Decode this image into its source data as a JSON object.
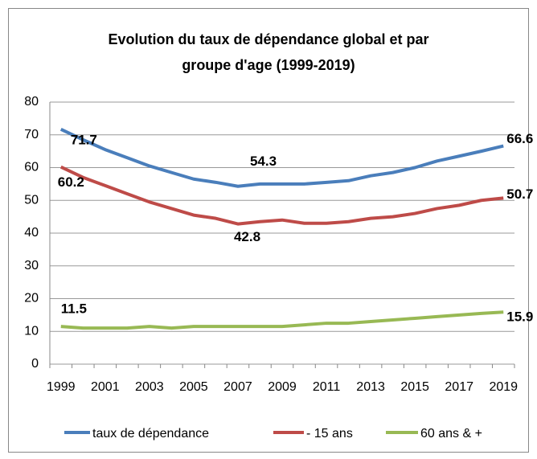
{
  "chart_data": {
    "type": "line",
    "title": [
      "Evolution du taux de dépendance global et par",
      "groupe d'age (1999-2019)"
    ],
    "categories": [
      1999,
      null,
      2001,
      null,
      2003,
      null,
      2005,
      null,
      2007,
      null,
      2009,
      null,
      2011,
      null,
      2013,
      null,
      2015,
      null,
      2017,
      null,
      2019
    ],
    "series": [
      {
        "name": "taux de dépendance",
        "color": "#4a7ebb",
        "values": [
          71.7,
          68.5,
          65.5,
          63,
          60.5,
          58.5,
          56.5,
          55.5,
          54.3,
          55,
          55,
          55,
          55.5,
          56,
          57.5,
          58.5,
          60,
          62,
          63.5,
          65,
          66.6
        ],
        "value_labels": [
          "71.7",
          null,
          null,
          null,
          null,
          null,
          null,
          null,
          "54.3",
          null,
          null,
          null,
          null,
          null,
          null,
          null,
          null,
          null,
          null,
          null,
          "66.6"
        ]
      },
      {
        "name": "- 15 ans",
        "color": "#be4b48",
        "values": [
          60.2,
          57,
          54.5,
          52,
          49.5,
          47.5,
          45.5,
          44.5,
          42.8,
          43.5,
          44,
          43,
          43,
          43.5,
          44.5,
          45,
          46,
          47.5,
          48.5,
          50,
          50.7
        ],
        "value_labels": [
          "60.2",
          null,
          null,
          null,
          null,
          null,
          null,
          null,
          "42.8",
          null,
          null,
          null,
          null,
          null,
          null,
          null,
          null,
          null,
          null,
          null,
          "50.7"
        ]
      },
      {
        "name": "60 ans & +",
        "color": "#98b954",
        "values": [
          11.5,
          11,
          11,
          11,
          11.5,
          11,
          11.5,
          11.5,
          11.5,
          11.5,
          11.5,
          12,
          12.5,
          12.5,
          13,
          13.5,
          14,
          14.5,
          15,
          15.5,
          15.9
        ],
        "value_labels": [
          "11.5",
          null,
          null,
          null,
          null,
          null,
          null,
          null,
          null,
          null,
          null,
          null,
          null,
          null,
          null,
          null,
          null,
          null,
          null,
          null,
          "15.9"
        ]
      }
    ],
    "ylim": [
      0,
      80
    ],
    "yticks": [
      0,
      10,
      20,
      30,
      40,
      50,
      60,
      70,
      80
    ],
    "grid": true,
    "legend": "bottom"
  }
}
